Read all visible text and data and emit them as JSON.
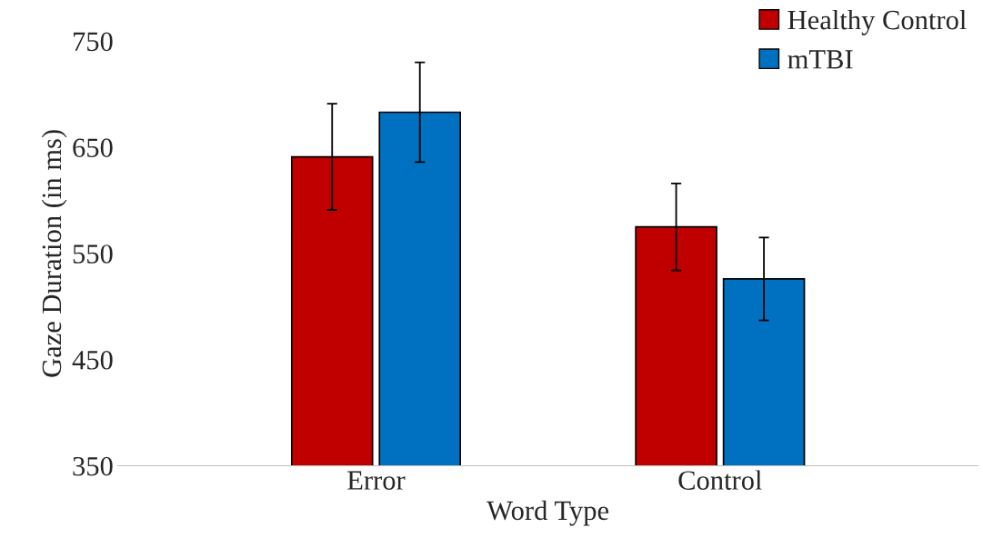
{
  "chart_data": {
    "type": "bar",
    "xlabel": "Word Type",
    "ylabel": "Gaze Duration (in ms)",
    "categories": [
      "Error",
      "Control"
    ],
    "series": [
      {
        "name": "Healthy Control",
        "color": "#c00000",
        "values": [
          641,
          575
        ],
        "errors": [
          50,
          41
        ]
      },
      {
        "name": "mTBI",
        "color": "#0070c0",
        "values": [
          683,
          526
        ],
        "errors": [
          47,
          39
        ]
      }
    ],
    "ylim": [
      350,
      750
    ],
    "yticks": [
      350,
      450,
      550,
      650,
      750
    ],
    "grid": false,
    "legend": "top right"
  }
}
